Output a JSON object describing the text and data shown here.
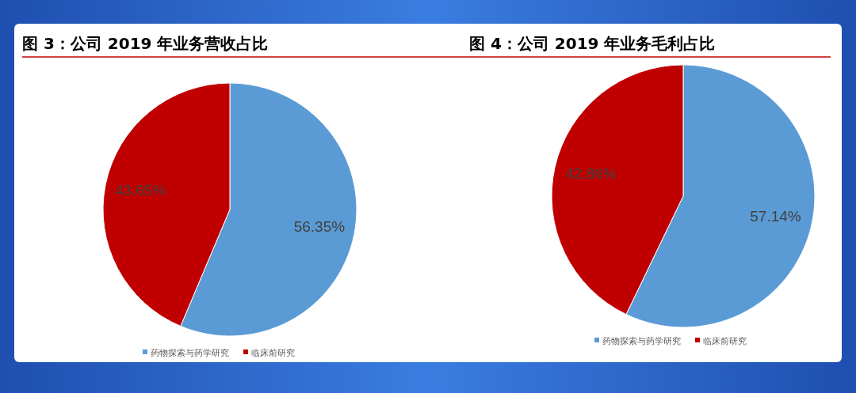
{
  "chart_data": [
    {
      "type": "pie",
      "title": "图 3：公司 2019 年业务营收占比",
      "categories": [
        "药物探索与药学研究",
        "临床前研究"
      ],
      "values": [
        56.35,
        43.65
      ],
      "value_labels": [
        "56.35%",
        "43.65%"
      ],
      "colors": [
        "#5b9bd5",
        "#c00000"
      ],
      "legend": "bottom"
    },
    {
      "type": "pie",
      "title": "图 4：公司 2019 年业务毛利占比",
      "categories": [
        "药物探索与药学研究",
        "临床前研究"
      ],
      "values": [
        57.14,
        42.86
      ],
      "value_labels": [
        "57.14%",
        "42.86%"
      ],
      "colors": [
        "#5b9bd5",
        "#c00000"
      ],
      "legend": "bottom"
    }
  ]
}
